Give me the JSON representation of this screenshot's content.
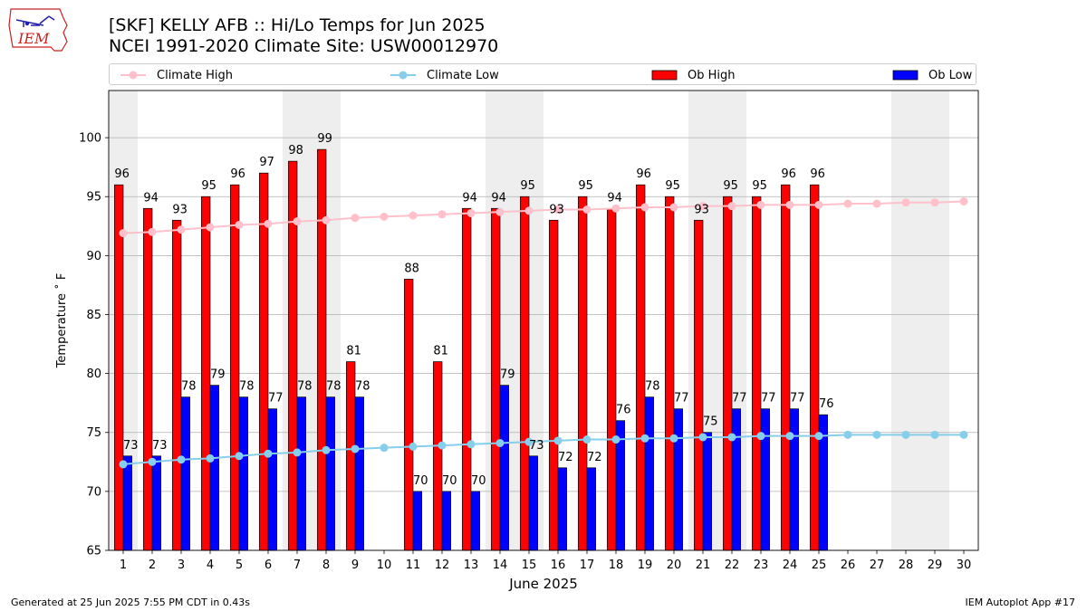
{
  "header": {
    "logo_text": "IEM",
    "title_line1": "[SKF] KELLY AFB :: Hi/Lo Temps for Jun 2025",
    "title_line2": "NCEI 1991-2020 Climate Site: USW00012970"
  },
  "legend": {
    "climate_high": "Climate High",
    "climate_low": "Climate Low",
    "ob_high": "Ob High",
    "ob_low": "Ob Low"
  },
  "colors": {
    "ob_high": "#ff0000",
    "ob_low": "#0000ff",
    "climate_high": "#ffc0cb",
    "climate_low": "#87ceeb",
    "weekend_band": "#eeeeee",
    "grid": "#b0b0b0"
  },
  "footer": {
    "left": "Generated at 25 Jun 2025 7:55 PM CDT in 0.43s",
    "right": "IEM Autoplot App #17"
  },
  "chart_data": {
    "type": "bar",
    "xlabel": "June 2025",
    "ylabel": "Temperature ˚ F",
    "ylim": [
      65,
      104
    ],
    "yticks": [
      65,
      70,
      75,
      80,
      85,
      90,
      95,
      100
    ],
    "grid": "y",
    "legend_position": "top",
    "categories": [
      "1",
      "2",
      "3",
      "4",
      "5",
      "6",
      "7",
      "8",
      "9",
      "10",
      "11",
      "12",
      "13",
      "14",
      "15",
      "16",
      "17",
      "18",
      "19",
      "20",
      "21",
      "22",
      "23",
      "24",
      "25",
      "26",
      "27",
      "28",
      "29",
      "30"
    ],
    "weekend_days": [
      1,
      7,
      8,
      14,
      15,
      21,
      22,
      28,
      29
    ],
    "series": [
      {
        "name": "Ob High",
        "kind": "bar",
        "values": [
          96,
          94,
          93,
          95,
          96,
          97,
          98,
          99,
          81,
          null,
          88,
          81,
          94,
          94,
          95,
          93,
          95,
          94,
          96,
          95,
          93,
          95,
          95,
          96,
          96,
          null,
          null,
          null,
          null,
          null
        ],
        "labels": [
          "96",
          "94",
          "93",
          "95",
          "96",
          "97",
          "98",
          "99",
          "81",
          "",
          "88",
          "81",
          "94",
          "94",
          "95",
          "93",
          "95",
          "94",
          "96",
          "95",
          "93",
          "95",
          "95",
          "96",
          "96",
          "",
          "",
          "",
          "",
          ""
        ]
      },
      {
        "name": "Ob Low",
        "kind": "bar",
        "values": [
          73,
          73,
          78,
          79,
          78,
          77,
          78,
          78,
          78,
          null,
          70,
          70,
          70,
          79,
          73,
          72,
          72,
          76,
          78,
          77,
          75,
          77,
          77,
          77,
          76.5,
          null,
          null,
          null,
          null,
          null
        ],
        "labels": [
          "73",
          "73",
          "78",
          "79",
          "78",
          "77",
          "78",
          "78",
          "78",
          "",
          "70",
          "70",
          "70",
          "79",
          "73",
          "72",
          "72",
          "76",
          "78",
          "77",
          "75",
          "77",
          "77",
          "77",
          "76",
          "",
          "",
          "",
          "",
          ""
        ]
      },
      {
        "name": "Climate High",
        "kind": "line",
        "values": [
          91.9,
          92.0,
          92.2,
          92.4,
          92.6,
          92.7,
          92.9,
          93.0,
          93.2,
          93.3,
          93.4,
          93.5,
          93.6,
          93.7,
          93.8,
          93.9,
          93.9,
          94.0,
          94.1,
          94.1,
          94.2,
          94.2,
          94.3,
          94.3,
          94.3,
          94.4,
          94.4,
          94.5,
          94.5,
          94.6
        ]
      },
      {
        "name": "Climate Low",
        "kind": "line",
        "values": [
          72.3,
          72.5,
          72.7,
          72.8,
          73.0,
          73.2,
          73.3,
          73.5,
          73.6,
          73.7,
          73.8,
          73.9,
          74.0,
          74.1,
          74.2,
          74.3,
          74.4,
          74.4,
          74.5,
          74.5,
          74.6,
          74.6,
          74.7,
          74.7,
          74.7,
          74.8,
          74.8,
          74.8,
          74.8,
          74.8
        ]
      }
    ]
  }
}
